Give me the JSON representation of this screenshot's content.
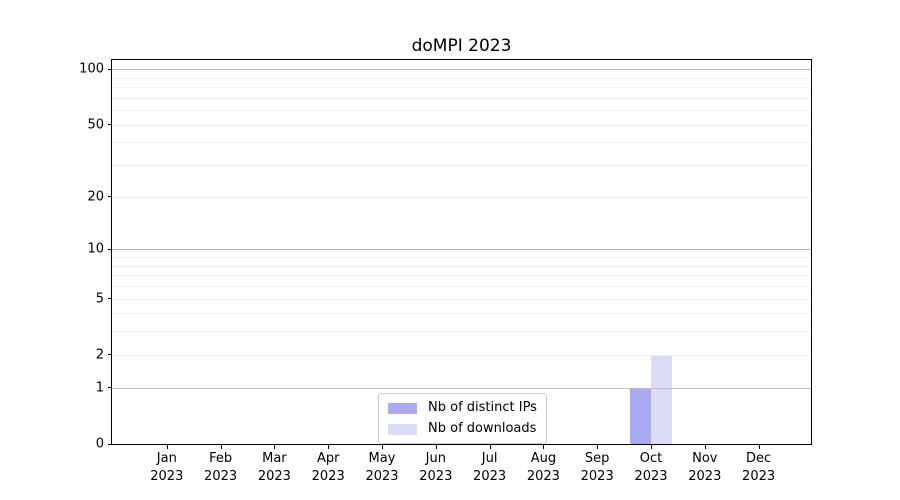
{
  "figure": {
    "title": "doMPI 2023"
  },
  "legend": {
    "items": [
      {
        "label": "Nb of distinct IPs",
        "color": "#aaaaf2"
      },
      {
        "label": "Nb of downloads",
        "color": "#dcdcf8"
      }
    ]
  },
  "chart_data": {
    "type": "bar",
    "title": "doMPI 2023",
    "categories": [
      "Jan 2023",
      "Feb 2023",
      "Mar 2023",
      "Apr 2023",
      "May 2023",
      "Jun 2023",
      "Jul 2023",
      "Aug 2023",
      "Sep 2023",
      "Oct 2023",
      "Nov 2023",
      "Dec 2023"
    ],
    "series": [
      {
        "name": "Nb of distinct IPs",
        "color": "#aaaaf2",
        "values": [
          0,
          0,
          0,
          0,
          0,
          0,
          0,
          0,
          0,
          1,
          0,
          0
        ]
      },
      {
        "name": "Nb of downloads",
        "color": "#dcdcf8",
        "values": [
          0,
          0,
          0,
          0,
          0,
          0,
          0,
          0,
          0,
          2,
          0,
          0
        ]
      }
    ],
    "yticks": [
      0,
      1,
      2,
      5,
      10,
      20,
      50,
      100
    ],
    "ylim": [
      0,
      112
    ],
    "yscale": "log10(1+x)",
    "xlabel": "",
    "ylabel": "",
    "grid": true,
    "grid_major_values": [
      1,
      10,
      100
    ],
    "grid_minor_values": [
      2,
      3,
      4,
      5,
      6,
      7,
      8,
      9,
      20,
      30,
      40,
      50,
      60,
      70,
      80,
      90
    ],
    "legend_position": "lower center"
  }
}
